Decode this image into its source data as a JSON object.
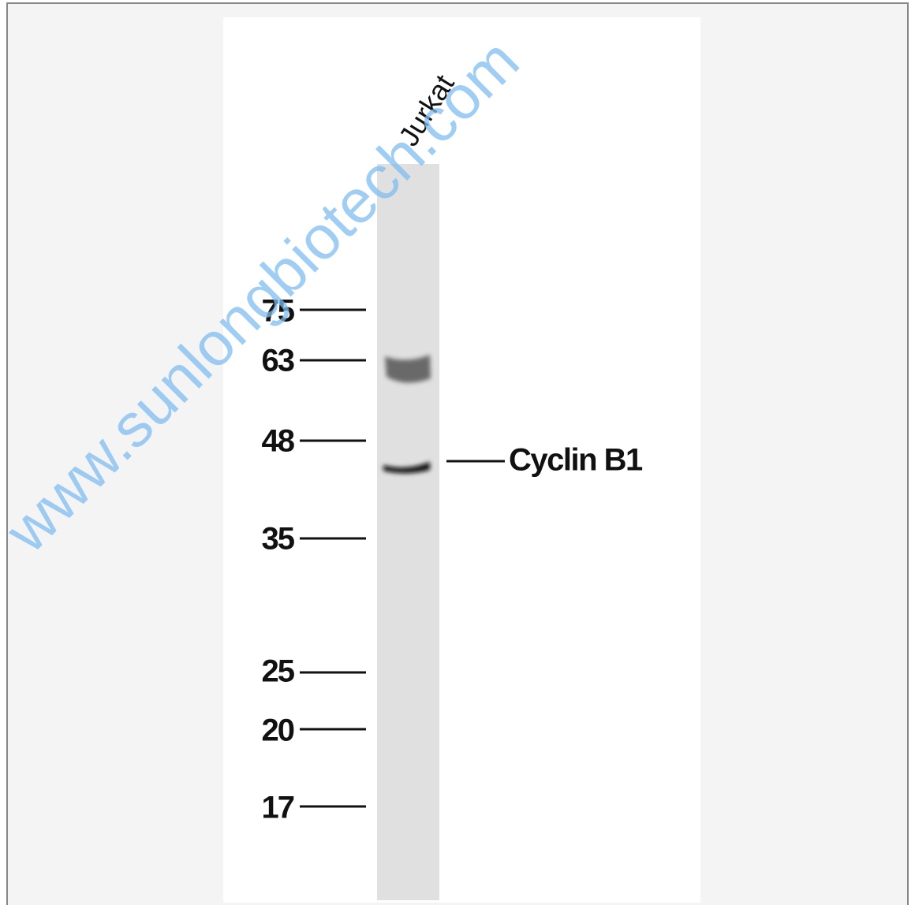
{
  "lane_label": "Jurkat",
  "markers": [
    "75",
    "63",
    "48",
    "35",
    "25",
    "20",
    "17"
  ],
  "band_label": "Cyclin B1",
  "watermark": "www.sunlongbiotech.com"
}
